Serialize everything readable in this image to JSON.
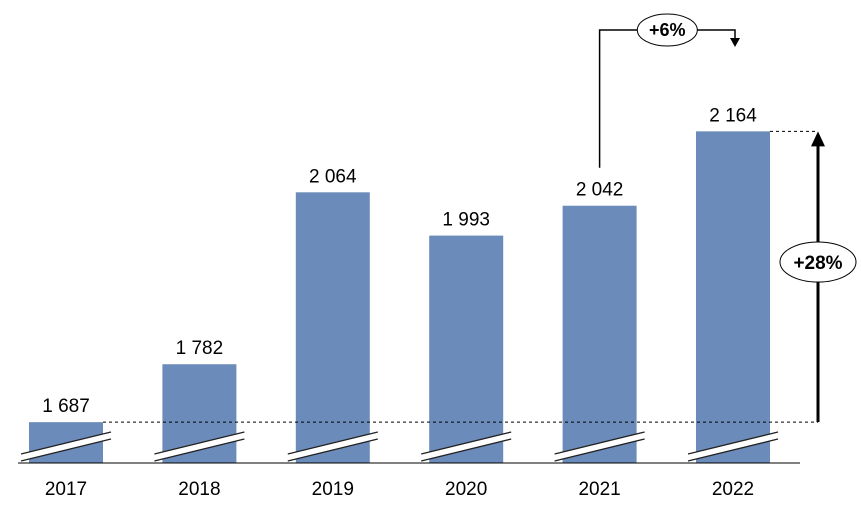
{
  "chart_data": {
    "type": "bar",
    "title": "",
    "xlabel": "",
    "ylabel": "",
    "categories": [
      "2017",
      "2018",
      "2019",
      "2020",
      "2021",
      "2022"
    ],
    "values": [
      1687,
      1782,
      2064,
      1993,
      2042,
      2164
    ],
    "value_labels": [
      "1 687",
      "1 782",
      "2 064",
      "1 993",
      "2 042",
      "2 164"
    ],
    "ylim": [
      1620,
      2240
    ],
    "axis_break": true,
    "grid": false,
    "legend": "none",
    "bar_color": "#6b8cba",
    "annotations": [
      {
        "label": "+6%",
        "from": "2021",
        "to": "2022",
        "style": "elbow-arrow"
      },
      {
        "label": "+28%",
        "from": "2017",
        "to": "2022",
        "style": "vertical-arrow"
      }
    ]
  }
}
